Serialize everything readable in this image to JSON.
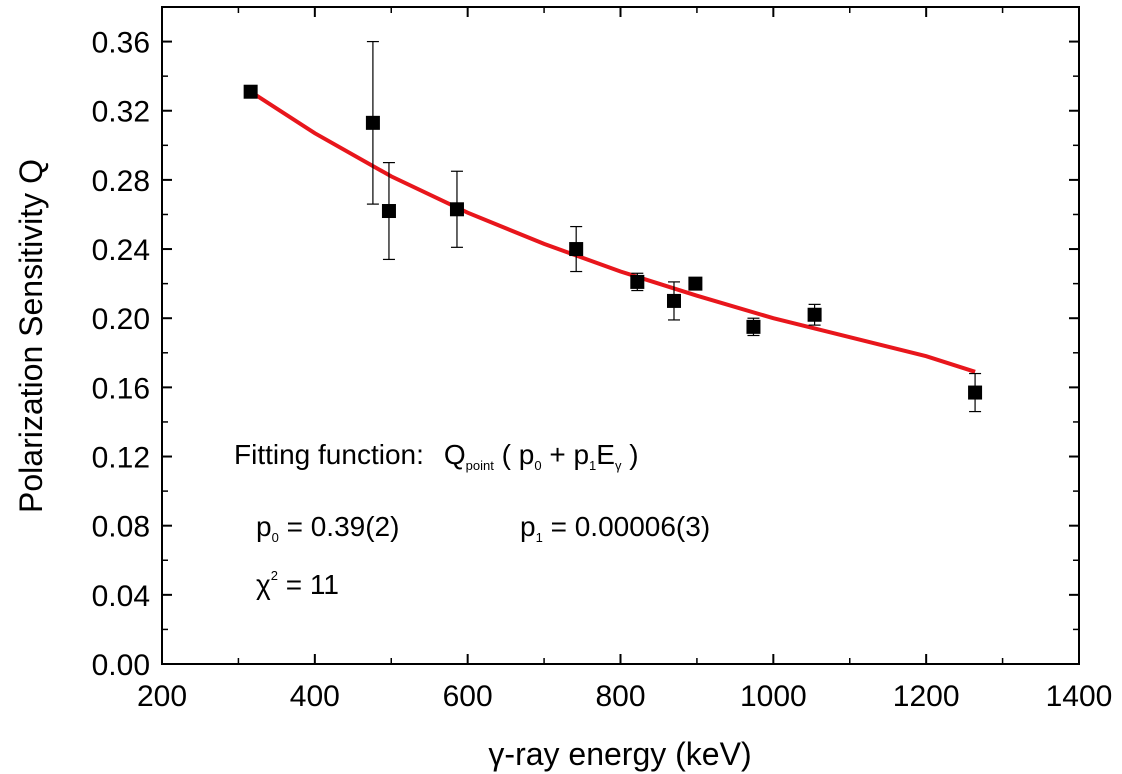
{
  "chart_data": {
    "type": "scatter",
    "xlabel": "γ-ray energy (keV)",
    "ylabel": "Polarization Sensitivity Q",
    "xlim": [
      200,
      1400
    ],
    "ylim": [
      0.0,
      0.38
    ],
    "x_ticks": [
      "200",
      "400",
      "600",
      "800",
      "1000",
      "1200",
      "1400"
    ],
    "y_ticks": [
      "0.00",
      "0.04",
      "0.08",
      "0.12",
      "0.16",
      "0.20",
      "0.24",
      "0.28",
      "0.32",
      "0.36"
    ],
    "grid": false,
    "series": [
      {
        "marker": "square",
        "color": "#000000",
        "points": [
          {
            "x": 316,
            "y": 0.331,
            "err": 0.003
          },
          {
            "x": 476,
            "y": 0.313,
            "err": 0.047
          },
          {
            "x": 497,
            "y": 0.262,
            "err": 0.028
          },
          {
            "x": 586,
            "y": 0.263,
            "err": 0.022
          },
          {
            "x": 742,
            "y": 0.24,
            "err": 0.013
          },
          {
            "x": 822,
            "y": 0.221,
            "err": 0.005
          },
          {
            "x": 870,
            "y": 0.21,
            "err": 0.011
          },
          {
            "x": 898,
            "y": 0.22,
            "err": 0.003
          },
          {
            "x": 974,
            "y": 0.195,
            "err": 0.005
          },
          {
            "x": 1054,
            "y": 0.202,
            "err": 0.006
          },
          {
            "x": 1264,
            "y": 0.157,
            "err": 0.011
          }
        ]
      }
    ],
    "fit": {
      "color": "#e8161c",
      "x": [
        316,
        400,
        500,
        600,
        700,
        800,
        900,
        1000,
        1100,
        1200,
        1264
      ],
      "y": [
        0.331,
        0.307,
        0.282,
        0.261,
        0.243,
        0.227,
        0.213,
        0.2,
        0.189,
        0.178,
        0.169
      ]
    },
    "annotations": {
      "fit_label": "Fitting function:",
      "fit_Q": "Q",
      "fit_Q_sub": "point",
      "fit_open": " ( p",
      "fit_p0_sub": "0",
      "fit_plus": " + p",
      "fit_p1_sub": "1",
      "fit_E": "E",
      "fit_E_sub": "γ",
      "fit_close": " )",
      "p0_label": "p",
      "p0_sub": "0",
      "p0_value": " = 0.39(2)",
      "p1_label": "p",
      "p1_sub": "1",
      "p1_value": " = 0.00006(3)",
      "chi_label": "χ",
      "chi_sup": "2",
      "chi_value": " = 11"
    }
  }
}
